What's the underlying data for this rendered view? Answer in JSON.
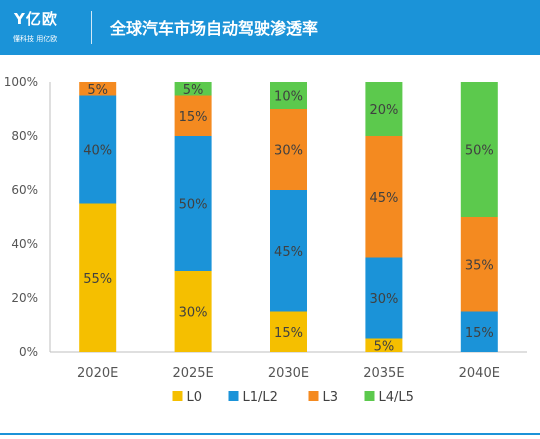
{
  "header": {
    "logo_text": "Y亿欧",
    "logo_tagline": "懂科技 用亿欧",
    "title": "全球汽车市场自动驾驶渗透率"
  },
  "colors": {
    "header_bg": "#1b93d8",
    "L0": "#f5bf00",
    "L1/L2": "#1b93d8",
    "L3": "#f48a20",
    "L4/L5": "#5cc94d"
  },
  "chart_data": {
    "type": "bar",
    "stacked": true,
    "title": "全球汽车市场自动驾驶渗透率",
    "categories": [
      "2020E",
      "2025E",
      "2030E",
      "2035E",
      "2040E"
    ],
    "series": [
      {
        "name": "L0",
        "values": [
          55,
          30,
          15,
          5,
          0
        ]
      },
      {
        "name": "L1/L2",
        "values": [
          40,
          50,
          45,
          30,
          15
        ]
      },
      {
        "name": "L3",
        "values": [
          5,
          15,
          30,
          45,
          35
        ]
      },
      {
        "name": "L4/L5",
        "values": [
          0,
          5,
          10,
          20,
          50
        ]
      }
    ],
    "value_labels": [
      [
        "55%",
        "30%",
        "15%",
        "5%",
        ""
      ],
      [
        "40%",
        "50%",
        "45%",
        "30%",
        "15%"
      ],
      [
        "5%",
        "15%",
        "30%",
        "45%",
        "35%"
      ],
      [
        "",
        "5%",
        "10%",
        "20%",
        "50%"
      ]
    ],
    "y_ticks": [
      "0%",
      "20%",
      "40%",
      "60%",
      "80%",
      "100%"
    ],
    "ylim": [
      0,
      100
    ],
    "grid": false,
    "legend_position": "bottom"
  }
}
